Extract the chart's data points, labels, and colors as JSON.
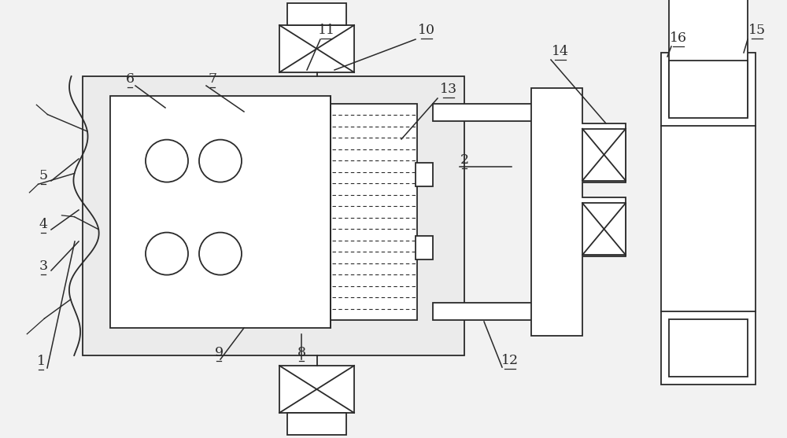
{
  "bg_color": "#f2f2f2",
  "line_color": "#2a2a2a",
  "lw": 1.3,
  "fig_width": 10.0,
  "fig_height": 5.57
}
